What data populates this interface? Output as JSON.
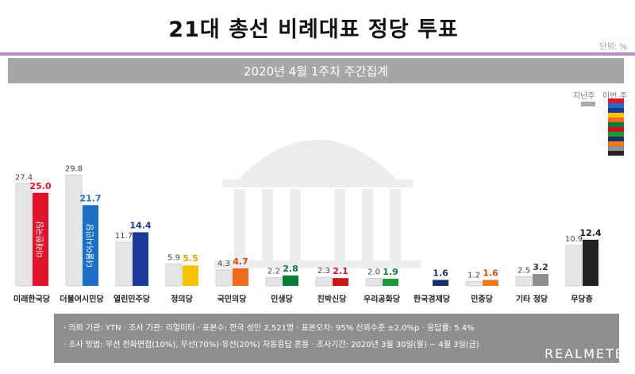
{
  "title": "21대 총선 비례대표 정당 투표",
  "unit": "단위: %",
  "subtitle": "2020년 4월 1주차 주간집계",
  "legend": {
    "previous": "지난주",
    "current": "이번 주",
    "previous_color": "#aaaaaa"
  },
  "chart_data": {
    "type": "bar",
    "categories": [
      "미래한국당",
      "더불어시민당",
      "열린민주당",
      "정의당",
      "국민의당",
      "민생당",
      "친박신당",
      "우리공화당",
      "한국경제당",
      "민중당",
      "기타 정당",
      "무당층"
    ],
    "series": [
      {
        "name": "지난주",
        "values": [
          27.4,
          29.8,
          11.7,
          5.9,
          4.3,
          2.2,
          2.3,
          2.0,
          null,
          1.2,
          2.5,
          10.9
        ]
      },
      {
        "name": "이번 주",
        "values": [
          25.0,
          21.7,
          14.4,
          5.5,
          4.7,
          2.8,
          2.1,
          1.9,
          1.6,
          1.6,
          3.2,
          12.4
        ]
      }
    ],
    "prev_labels": [
      "27.4",
      "29.8",
      "11.7",
      "5.9",
      "4.3",
      "2.2",
      "2.3",
      "2.0",
      "",
      "1.2",
      "2.5",
      "10.9"
    ],
    "cur_labels": [
      "25.0",
      "21.7",
      "14.4",
      "5.5",
      "4.7",
      "2.8",
      "2.1",
      "1.9",
      "1.6",
      "1.6",
      "3.2",
      "12.4"
    ],
    "cur_colors": [
      "#e0142b",
      "#1c6fc4",
      "#1a3a9a",
      "#f6c300",
      "#ef6a1d",
      "#0a7a3a",
      "#c8161d",
      "#1a9a3a",
      "#1a2f6a",
      "#ef7a1d",
      "#8e8e8e",
      "#222222"
    ],
    "cur_label_colors": [
      "#e0142b",
      "#1c6fc4",
      "#1a3a9a",
      "#e5a800",
      "#d94a12",
      "#0a7a3a",
      "#c8161d",
      "#0a7a3a",
      "#1a2f6a",
      "#d94a12",
      "#333333",
      "#111111"
    ],
    "bar_texts": [
      "미래한국당",
      "더불어시민당",
      "",
      "",
      "",
      "",
      "",
      "",
      "",
      "",
      "",
      ""
    ],
    "ylim": [
      0,
      32
    ]
  },
  "info_lines": [
    "· 의뢰 기관: YTN   · 조사 기관: 리얼미터   · 표본수: 전국 성인 2,521명   · 표본오차: 95% 신뢰수준 ±2.0%p   · 응답률: 5.4%",
    "· 조사 방법: 무선 전화면접(10%), 무선(70%)·유선(20%) 자동응답 혼용   · 조사기간: 2020년 3월 30일(월) ~ 4월 3일(금)"
  ],
  "brand": "REALMETER"
}
